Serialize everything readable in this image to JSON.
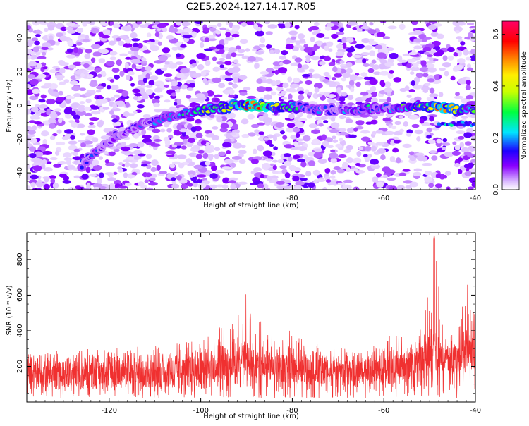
{
  "figure": {
    "title": "C2E5.2024.127.14.17.R05"
  },
  "chart_data": [
    {
      "type": "heatmap",
      "xlabel": "Height of straight line (km)",
      "ylabel": "Frequency (Hz)",
      "xlim": [
        -138,
        -40
      ],
      "ylim": [
        -50,
        50
      ],
      "xticks": [
        -120,
        -100,
        -80,
        -60,
        -40
      ],
      "yticks": [
        -40,
        -20,
        0,
        20,
        40
      ],
      "colorbar": {
        "label": "Normalized spectral amplitude",
        "range": [
          0,
          0.65
        ],
        "ticks": [
          "0.0",
          "0.2",
          "0.4",
          "0.6"
        ],
        "colormap": [
          "#ffffff",
          "#d9b8ff",
          "#8a00ff",
          "#1e00ff",
          "#00e5ff",
          "#00ff40",
          "#c8ff00",
          "#ffee00",
          "#ff7f00",
          "#ff0000",
          "#ff0066"
        ]
      },
      "ridge_trace": {
        "description_free": true,
        "x": [
          -126,
          -122,
          -118,
          -114,
          -110,
          -106,
          -102,
          -98,
          -94,
          -90,
          -86,
          -82,
          -78,
          -74,
          -70,
          -66,
          -62,
          -58,
          -54,
          -50,
          -46,
          -42,
          -40
        ],
        "y": [
          -35,
          -25,
          -17,
          -13,
          -9,
          -6,
          -4,
          -2,
          -1,
          0,
          0,
          -1,
          -1,
          -2,
          -3,
          -2,
          -2,
          -2,
          0,
          -1,
          -2,
          -3,
          -3
        ],
        "amplitude": [
          0.2,
          0.2,
          0.18,
          0.2,
          0.25,
          0.28,
          0.35,
          0.4,
          0.45,
          0.55,
          0.62,
          0.35,
          0.3,
          0.25,
          0.2,
          0.3,
          0.3,
          0.25,
          0.4,
          0.45,
          0.55,
          0.4,
          0.35
        ]
      },
      "secondary_band": {
        "x": [
          -48,
          -40
        ],
        "y": -11,
        "amplitude": 0.25
      }
    },
    {
      "type": "line",
      "xlabel": "Height of straight line (km)",
      "ylabel": "SNR (10 * v/v)",
      "xlim": [
        -138,
        -40
      ],
      "ylim": [
        0,
        950
      ],
      "xticks": [
        -120,
        -100,
        -80,
        -60,
        -40
      ],
      "yticks": [
        200,
        400,
        600,
        800
      ],
      "series": [
        {
          "color": "#f03030",
          "envelope_x": [
            -138,
            -130,
            -125,
            -120,
            -115,
            -110,
            -105,
            -100,
            -97,
            -94,
            -91,
            -90,
            -88,
            -86,
            -84,
            -82,
            -80,
            -78,
            -75,
            -72,
            -68,
            -65,
            -62,
            -58,
            -55,
            -53,
            -51,
            -50,
            -49,
            -48,
            -47,
            -46,
            -45,
            -44,
            -43,
            -42,
            -41,
            -40
          ],
          "envelope_max": [
            300,
            290,
            300,
            300,
            310,
            320,
            330,
            360,
            400,
            450,
            550,
            650,
            430,
            480,
            360,
            380,
            410,
            360,
            330,
            320,
            300,
            330,
            340,
            380,
            420,
            480,
            560,
            700,
            940,
            720,
            560,
            480,
            440,
            480,
            560,
            690,
            620,
            500
          ],
          "baseline_mean": [
            150,
            150,
            150,
            155,
            160,
            160,
            170,
            180,
            190,
            200,
            220,
            230,
            210,
            210,
            190,
            185,
            185,
            180,
            170,
            165,
            160,
            165,
            170,
            180,
            200,
            220,
            250,
            300,
            330,
            280,
            240,
            230,
            230,
            240,
            260,
            280,
            260,
            240
          ]
        }
      ]
    }
  ]
}
